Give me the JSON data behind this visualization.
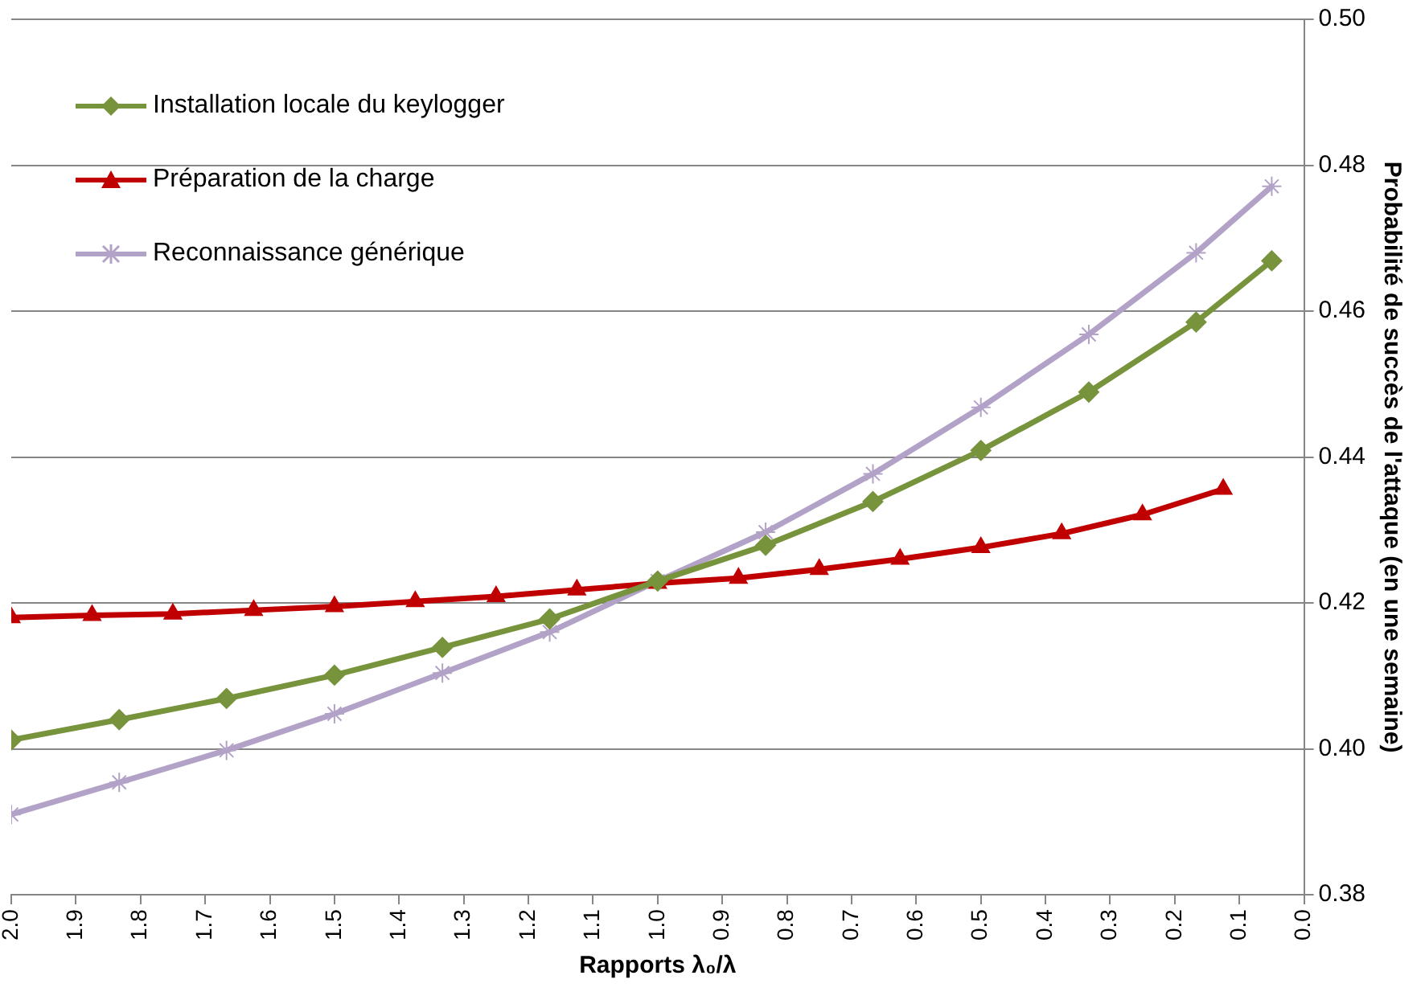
{
  "chart_data": {
    "type": "line",
    "xlabel": "Rapports λ₀/λ",
    "ylabel": "Probabilité de succès de l'attaque (en une semaine)",
    "xlim": [
      2.0,
      0.0
    ],
    "xticks": [
      {
        "value": 2.0,
        "label": "2.0"
      },
      {
        "value": 1.9,
        "label": "1.9"
      },
      {
        "value": 1.8,
        "label": "1.8"
      },
      {
        "value": 1.7,
        "label": "1.7"
      },
      {
        "value": 1.6,
        "label": "1.6"
      },
      {
        "value": 1.5,
        "label": "1.5"
      },
      {
        "value": 1.4,
        "label": "1.4"
      },
      {
        "value": 1.3,
        "label": "1.3"
      },
      {
        "value": 1.2,
        "label": "1.2"
      },
      {
        "value": 1.1,
        "label": "1.1"
      },
      {
        "value": 1.0,
        "label": "1.0"
      },
      {
        "value": 0.9,
        "label": "0.9"
      },
      {
        "value": 0.8,
        "label": "0.8"
      },
      {
        "value": 0.7,
        "label": "0.7"
      },
      {
        "value": 0.6,
        "label": "0.6"
      },
      {
        "value": 0.5,
        "label": "0.5"
      },
      {
        "value": 0.4,
        "label": "0.4"
      },
      {
        "value": 0.3,
        "label": "0.3"
      },
      {
        "value": 0.2,
        "label": "0.2"
      },
      {
        "value": 0.1,
        "label": "0.1"
      },
      {
        "value": 0.0,
        "label": "0.0"
      }
    ],
    "ylim": [
      0.38,
      0.5
    ],
    "yticks": [
      {
        "value": 0.38,
        "label": "0.38"
      },
      {
        "value": 0.4,
        "label": "0.40"
      },
      {
        "value": 0.42,
        "label": "0.42"
      },
      {
        "value": 0.44,
        "label": "0.44"
      },
      {
        "value": 0.46,
        "label": "0.46"
      },
      {
        "value": 0.48,
        "label": "0.48"
      },
      {
        "value": 0.5,
        "label": "0.50"
      }
    ],
    "grid": "y",
    "legend": "top left",
    "line_style": "solid",
    "series": [
      {
        "name": "Installation locale du keylogger",
        "color": "#77933c",
        "marker": "diamond",
        "x": [
          2.0,
          1.833,
          1.667,
          1.5,
          1.333,
          1.167,
          1.0,
          0.833,
          0.667,
          0.5,
          0.333,
          0.167,
          0.05
        ],
        "values": [
          0.4012,
          0.404,
          0.4069,
          0.4101,
          0.4139,
          0.4178,
          0.423,
          0.4279,
          0.4339,
          0.4409,
          0.4489,
          0.4585,
          0.4669
        ]
      },
      {
        "name": "Préparation de la charge",
        "color": "#c00000",
        "marker": "triangle",
        "x": [
          2.0,
          1.875,
          1.75,
          1.625,
          1.5,
          1.375,
          1.25,
          1.125,
          1.0,
          0.875,
          0.75,
          0.625,
          0.5,
          0.375,
          0.25,
          0.125
        ],
        "values": [
          0.418,
          0.4183,
          0.4185,
          0.419,
          0.4195,
          0.4202,
          0.4209,
          0.4218,
          0.4227,
          0.4234,
          0.4246,
          0.426,
          0.4276,
          0.4295,
          0.4321,
          0.4356
        ]
      },
      {
        "name": "Reconnaissance générique",
        "color": "#b3a2c7",
        "marker": "cross",
        "x": [
          2.0,
          1.833,
          1.667,
          1.5,
          1.333,
          1.167,
          1.0,
          0.833,
          0.667,
          0.5,
          0.333,
          0.167,
          0.05
        ],
        "values": [
          0.391,
          0.3954,
          0.3998,
          0.4048,
          0.4104,
          0.416,
          0.423,
          0.4297,
          0.4377,
          0.4468,
          0.4568,
          0.468,
          0.4771
        ]
      }
    ]
  }
}
